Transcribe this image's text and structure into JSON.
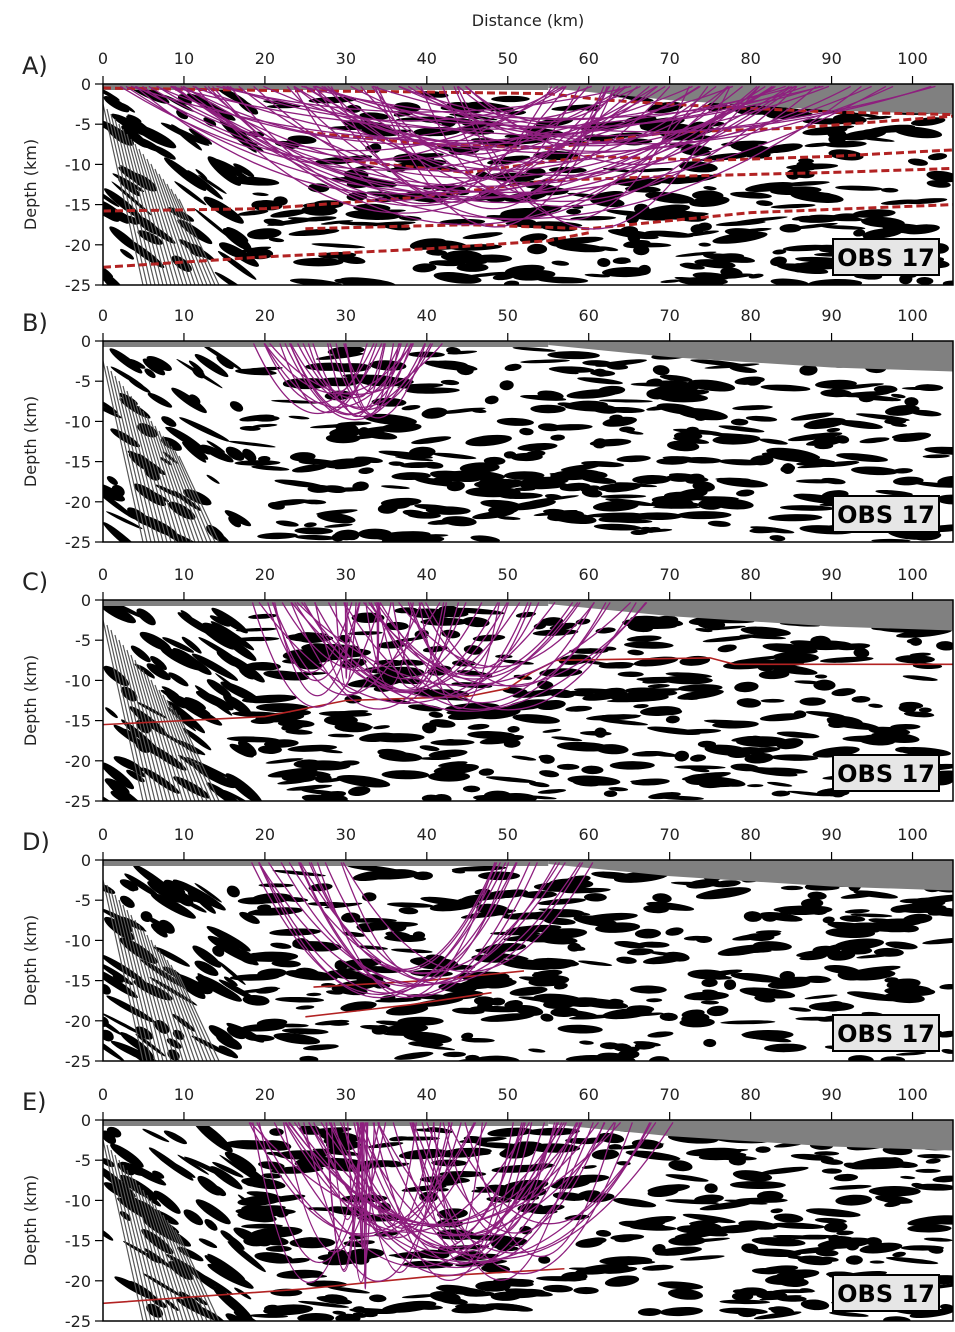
{
  "chart_data": [
    {
      "type": "line",
      "label": "A)",
      "xlabel": "Distance (km)",
      "ylabel": "Depth (km)",
      "annotation": "OBS 17",
      "xlim": [
        0,
        105
      ],
      "ylim": [
        -25,
        0
      ],
      "xticks": [
        0,
        10,
        20,
        30,
        40,
        50,
        60,
        70,
        80,
        90,
        100
      ],
      "yticks": [
        0,
        -5,
        -10,
        -15,
        -20,
        -25
      ],
      "dashed": true,
      "series": [
        {
          "color": "#b22222",
          "x": [
            0,
            20,
            40,
            55,
            62,
            75,
            90,
            105
          ],
          "values": [
            -0.5,
            -0.8,
            -1,
            -1.2,
            -2,
            -2.8,
            -3.5,
            -3.8
          ]
        },
        {
          "color": "#b22222",
          "x": [
            25,
            40,
            55,
            70,
            85,
            105
          ],
          "values": [
            -6,
            -7.5,
            -8,
            -6,
            -5.5,
            -4
          ]
        },
        {
          "color": "#b22222",
          "x": [
            30,
            45,
            60,
            75,
            90,
            105
          ],
          "values": [
            -9.5,
            -11,
            -9,
            -9.5,
            -9,
            -8.2
          ]
        },
        {
          "color": "#b22222",
          "x": [
            0,
            20,
            40,
            55,
            70,
            90,
            105
          ],
          "values": [
            -15.8,
            -15.5,
            -14,
            -12,
            -11.5,
            -11,
            -10.5
          ]
        },
        {
          "color": "#b22222",
          "x": [
            25,
            45,
            60,
            80,
            105
          ],
          "values": [
            -18,
            -17.5,
            -18,
            -16,
            -15
          ]
        },
        {
          "color": "#b22222",
          "x": [
            0,
            20,
            40,
            55,
            60
          ],
          "values": [
            -22.8,
            -21.5,
            -20.5,
            -19.5,
            -18.5
          ]
        }
      ]
    },
    {
      "type": "line",
      "label": "B)",
      "ylabel": "Depth (km)",
      "annotation": "OBS 17",
      "xlim": [
        0,
        105
      ],
      "ylim": [
        -25,
        0
      ],
      "xticks": [
        0,
        10,
        20,
        30,
        40,
        50,
        60,
        70,
        80,
        90,
        100
      ],
      "yticks": [
        0,
        -5,
        -10,
        -15,
        -20,
        -25
      ],
      "series": []
    },
    {
      "type": "line",
      "label": "C)",
      "ylabel": "Depth (km)",
      "annotation": "OBS 17",
      "xlim": [
        0,
        105
      ],
      "ylim": [
        -25,
        0
      ],
      "xticks": [
        0,
        10,
        20,
        30,
        40,
        50,
        60,
        70,
        80,
        90,
        100
      ],
      "yticks": [
        0,
        -5,
        -10,
        -15,
        -20,
        -25
      ],
      "series": [
        {
          "color": "#b22222",
          "x": [
            0,
            20,
            30,
            45,
            50,
            53,
            56,
            75,
            78,
            105
          ],
          "values": [
            -15.5,
            -14.5,
            -12.5,
            -12,
            -11,
            -9,
            -7.5,
            -7.2,
            -8,
            -8
          ]
        }
      ]
    },
    {
      "type": "line",
      "label": "D)",
      "ylabel": "Depth (km)",
      "annotation": "OBS 17",
      "xlim": [
        0,
        105
      ],
      "ylim": [
        -25,
        0
      ],
      "xticks": [
        0,
        10,
        20,
        30,
        40,
        50,
        60,
        70,
        80,
        90,
        100
      ],
      "yticks": [
        0,
        -5,
        -10,
        -15,
        -20,
        -25
      ],
      "series": [
        {
          "color": "#b22222",
          "x": [
            26,
            40,
            52
          ],
          "values": [
            -15.8,
            -15,
            -13.8
          ]
        },
        {
          "color": "#b22222",
          "x": [
            25,
            38,
            48
          ],
          "values": [
            -19.5,
            -18,
            -16.5
          ]
        }
      ]
    },
    {
      "type": "line",
      "label": "E)",
      "ylabel": "Depth (km)",
      "annotation": "OBS 17",
      "xlim": [
        0,
        105
      ],
      "ylim": [
        -25,
        0
      ],
      "xticks": [
        0,
        10,
        20,
        30,
        40,
        50,
        60,
        70,
        80,
        90,
        100
      ],
      "yticks": [
        0,
        -5,
        -10,
        -15,
        -20,
        -25
      ],
      "series": [
        {
          "color": "#b22222",
          "x": [
            0,
            25,
            40,
            57
          ],
          "values": [
            -22.8,
            -21,
            -19.5,
            -18.5
          ]
        }
      ]
    }
  ]
}
